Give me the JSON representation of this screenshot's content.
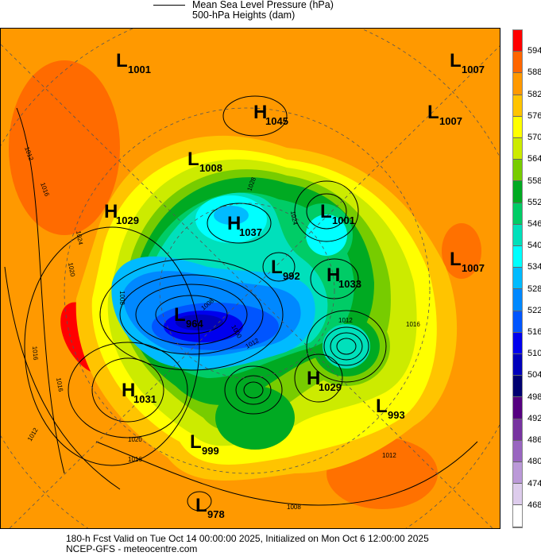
{
  "legend": {
    "line1": "Mean Sea Level Pressure (hPa)",
    "line2": "500-hPa Heights (dam)"
  },
  "colorbar": {
    "labels": [
      "594",
      "588",
      "582",
      "576",
      "570",
      "564",
      "558",
      "552",
      "546",
      "540",
      "534",
      "528",
      "522",
      "516",
      "510",
      "504",
      "498",
      "492",
      "486",
      "480",
      "474",
      "468"
    ],
    "colors": [
      "#ff0000",
      "#ff6600",
      "#ff9900",
      "#ffc400",
      "#ffff00",
      "#cceb00",
      "#77cc00",
      "#00aa22",
      "#00cc66",
      "#00e0bb",
      "#00ffff",
      "#00bbff",
      "#0088ff",
      "#0055ff",
      "#0000ee",
      "#0000bb",
      "#000070",
      "#550080",
      "#7733a0",
      "#9966c0",
      "#bb99d8",
      "#ddccec",
      "#ffffff"
    ]
  },
  "pressure_systems": [
    {
      "type": "L",
      "value": "1001"
    },
    {
      "type": "L",
      "value": "1007"
    },
    {
      "type": "H",
      "value": "1045"
    },
    {
      "type": "L",
      "value": "1007"
    },
    {
      "type": "L",
      "value": "1008"
    },
    {
      "type": "H",
      "value": "1029"
    },
    {
      "type": "L",
      "value": "1001"
    },
    {
      "type": "H",
      "value": "1037"
    },
    {
      "type": "L",
      "value": "1007"
    },
    {
      "type": "L",
      "value": "992"
    },
    {
      "type": "H",
      "value": "1033"
    },
    {
      "type": "L",
      "value": "964"
    },
    {
      "type": "H",
      "value": "1031"
    },
    {
      "type": "H",
      "value": "1029"
    },
    {
      "type": "L",
      "value": "993"
    },
    {
      "type": "L",
      "value": "999"
    },
    {
      "type": "L",
      "value": "978"
    }
  ],
  "isobar_labels": [
    "1012",
    "1016",
    "1024",
    "1020",
    "1016",
    "1008",
    "1016",
    "1012",
    "1020",
    "1016",
    "1008",
    "1028",
    "1024",
    "1012",
    "1016",
    "1012",
    "1008",
    "1000",
    "1012"
  ],
  "footer": {
    "line1": "180-h Fcst Valid on Tue Oct 14 00:00:00 2025, Initialized on Mon Oct  6 12:00:00 2025",
    "line2": "NCEP-GFS  - meteocentre.com"
  }
}
